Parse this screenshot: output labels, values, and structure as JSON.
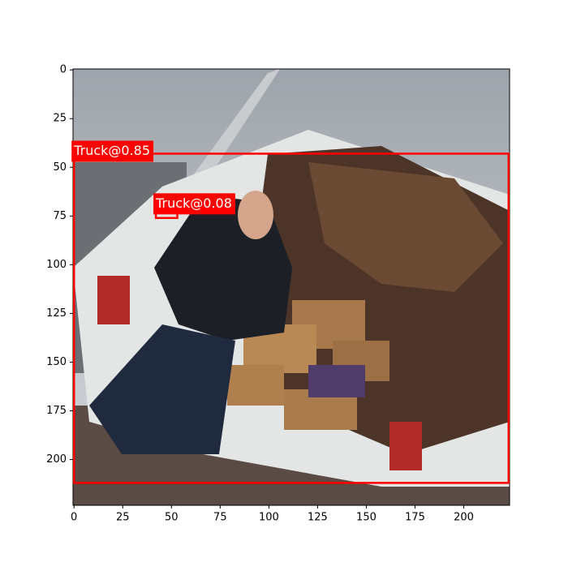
{
  "chart_data": {
    "type": "detection",
    "xlim": [
      -0.5,
      223.5
    ],
    "ylim": [
      223.5,
      -0.5
    ],
    "xticks": [
      0,
      25,
      50,
      75,
      100,
      125,
      150,
      175,
      200
    ],
    "yticks": [
      0,
      25,
      50,
      75,
      100,
      125,
      150,
      175,
      200
    ],
    "color": "#ff0000",
    "boxes": [
      {
        "label": "Truck@0.85",
        "x0": 0,
        "y0": 43,
        "x1": 223,
        "y1": 212
      },
      {
        "label": "Truck@0.08",
        "x0": 42,
        "y0": 70,
        "x1": 53,
        "y1": 76
      }
    ]
  }
}
